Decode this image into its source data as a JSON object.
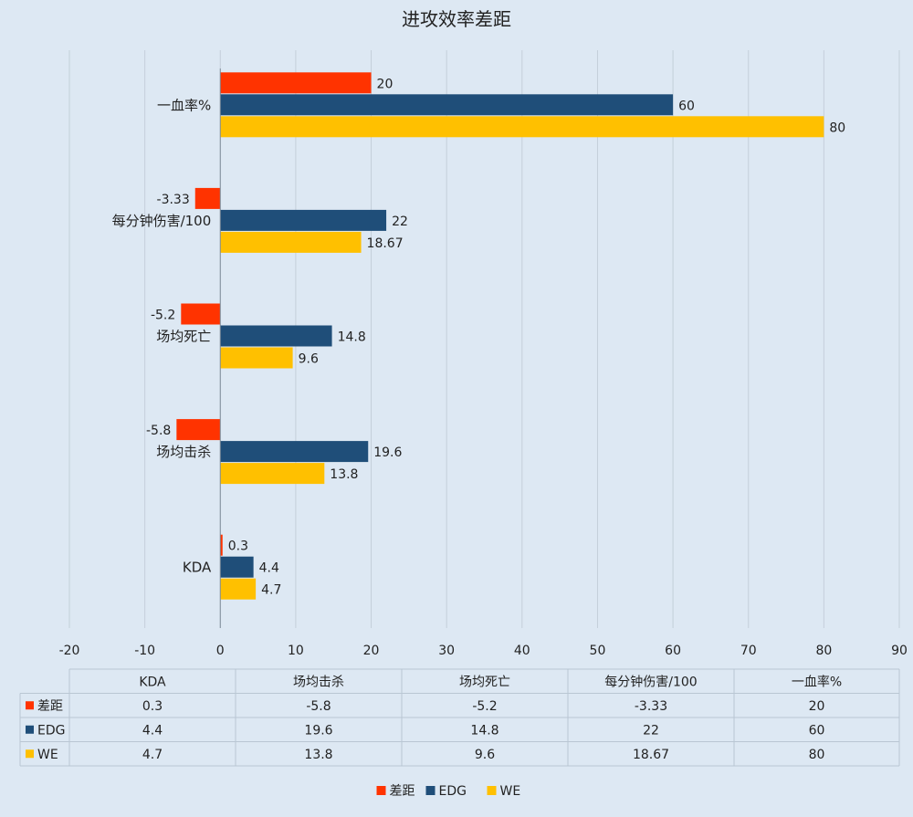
{
  "chart_data": {
    "type": "bar",
    "orientation": "horizontal",
    "title": "进攻效率差距",
    "categories": [
      "KDA",
      "场均击杀",
      "场均死亡",
      "每分钟伤害/100",
      "一血率%"
    ],
    "series": [
      {
        "name": "差距",
        "color": "#ff3300",
        "values": [
          0.3,
          -5.8,
          -5.2,
          -3.33,
          20
        ],
        "labels": [
          "0.3",
          "-5.8",
          "-5.2",
          "-3.33",
          "20"
        ]
      },
      {
        "name": "EDG",
        "color": "#1f4e79",
        "values": [
          4.4,
          19.6,
          14.8,
          22,
          60
        ],
        "labels": [
          "4.4",
          "19.6",
          "14.8",
          "22",
          "60"
        ]
      },
      {
        "name": "WE",
        "color": "#ffc000",
        "values": [
          4.7,
          13.8,
          9.6,
          18.67,
          80
        ],
        "labels": [
          "4.7",
          "13.8",
          "9.6",
          "18.67",
          "80"
        ]
      }
    ],
    "xlim": [
      -20,
      90
    ],
    "xticks": [
      "-20",
      "-10",
      "0",
      "10",
      "20",
      "30",
      "40",
      "50",
      "60",
      "70",
      "80",
      "90"
    ],
    "grid": true,
    "legend": "bottom",
    "data_table": true
  }
}
